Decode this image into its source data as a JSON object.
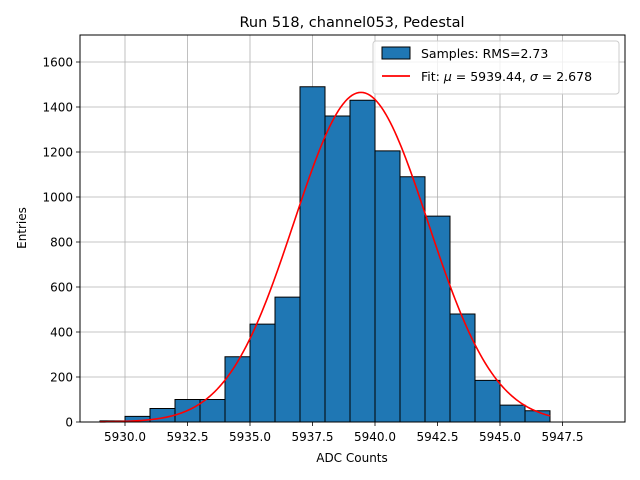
{
  "chart_data": {
    "type": "bar",
    "title": "Run 518, channel053, Pedestal",
    "xlabel": "ADC Counts",
    "ylabel": "Entries",
    "xlim": [
      5928.2,
      5950.0
    ],
    "ylim": [
      0,
      1720
    ],
    "grid": true,
    "legend_position": "top-right",
    "x_ticks": [
      5930.0,
      5932.5,
      5935.0,
      5937.5,
      5940.0,
      5942.5,
      5945.0,
      5947.5
    ],
    "x_tick_labels": [
      "5930.0",
      "5932.5",
      "5935.0",
      "5937.5",
      "5940.0",
      "5942.5",
      "5945.0",
      "5947.5"
    ],
    "y_ticks": [
      0,
      200,
      400,
      600,
      800,
      1000,
      1200,
      1400,
      1600
    ],
    "y_tick_labels": [
      "0",
      "200",
      "400",
      "600",
      "800",
      "1000",
      "1200",
      "1400",
      "1600"
    ],
    "histogram": {
      "name": "Samples: RMS=2.73",
      "color": "#1f77b4",
      "edge_color": "#000000",
      "bins": [
        {
          "x0": 5929.0,
          "x1": 5930.0,
          "count": 5
        },
        {
          "x0": 5930.0,
          "x1": 5931.0,
          "count": 25
        },
        {
          "x0": 5931.0,
          "x1": 5932.0,
          "count": 60
        },
        {
          "x0": 5932.0,
          "x1": 5933.0,
          "count": 100
        },
        {
          "x0": 5933.0,
          "x1": 5934.0,
          "count": 100
        },
        {
          "x0": 5934.0,
          "x1": 5935.0,
          "count": 290
        },
        {
          "x0": 5935.0,
          "x1": 5936.0,
          "count": 435
        },
        {
          "x0": 5936.0,
          "x1": 5937.0,
          "count": 555
        },
        {
          "x0": 5937.0,
          "x1": 5938.0,
          "count": 1490
        },
        {
          "x0": 5938.0,
          "x1": 5939.0,
          "count": 1360
        },
        {
          "x0": 5939.0,
          "x1": 5940.0,
          "count": 1430
        },
        {
          "x0": 5940.0,
          "x1": 5941.0,
          "count": 1205
        },
        {
          "x0": 5941.0,
          "x1": 5942.0,
          "count": 1090
        },
        {
          "x0": 5942.0,
          "x1": 5943.0,
          "count": 915
        },
        {
          "x0": 5943.0,
          "x1": 5944.0,
          "count": 480
        },
        {
          "x0": 5944.0,
          "x1": 5945.0,
          "count": 185
        },
        {
          "x0": 5945.0,
          "x1": 5946.0,
          "count": 75
        },
        {
          "x0": 5946.0,
          "x1": 5947.0,
          "count": 50
        }
      ]
    },
    "fit": {
      "name_prefix": "Fit: ",
      "mu_symbol": "μ",
      "sigma_symbol": "σ",
      "equals": " = ",
      "separator": ", ",
      "mu": "5939.44",
      "sigma": "2.678",
      "amplitude": 1465,
      "x_range": [
        5929.0,
        5947.0
      ],
      "color": "#ff0000"
    }
  }
}
